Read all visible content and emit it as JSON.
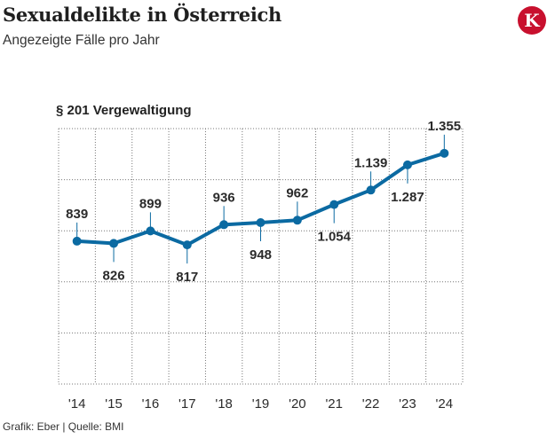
{
  "header": {
    "title": "Sexualdelikte in Österreich",
    "subtitle": "Angezeigte Fälle pro Jahr",
    "logo_letter": "K",
    "brand_color": "#c8102e"
  },
  "chart_data": {
    "type": "line",
    "title": "§ 201 Vergewaltigung",
    "categories": [
      "'14",
      "'15",
      "'16",
      "'17",
      "'18",
      "'19",
      "'20",
      "'21",
      "'22",
      "'23",
      "'24"
    ],
    "series": [
      {
        "name": "§ 201 Vergewaltigung",
        "values": [
          839,
          826,
          899,
          817,
          936,
          948,
          962,
          1054,
          1139,
          1287,
          1355
        ],
        "labels": [
          "839",
          "826",
          "899",
          "817",
          "936",
          "948",
          "962",
          "1.054",
          "1.139",
          "1.287",
          "1.355"
        ],
        "label_position": [
          "above",
          "below",
          "above",
          "below",
          "above",
          "below",
          "above",
          "below",
          "above",
          "below",
          "above"
        ],
        "color": "#0b6aa2"
      }
    ],
    "ylim": [
      0,
      1500
    ],
    "xlabel": "",
    "ylabel": "",
    "grid": true
  },
  "footer": {
    "source": "Grafik: Eber | Quelle: BMI"
  }
}
